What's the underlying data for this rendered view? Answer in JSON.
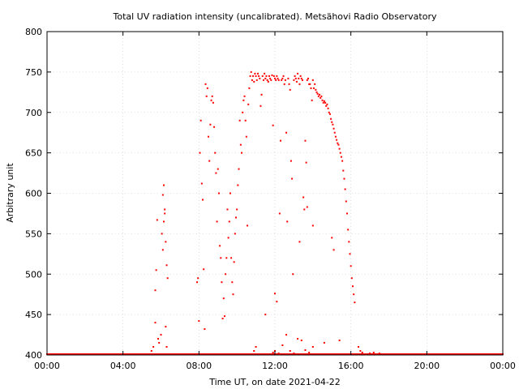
{
  "chart_data": {
    "type": "scatter",
    "title": "Total UV radiation intensity (uncalibrated). Metsähovi Radio Observatory",
    "xlabel": "Time UT, on date 2021-04-22",
    "ylabel": "Arbitrary unit",
    "x_unit": "hours UT",
    "xlim": [
      0,
      24
    ],
    "ylim": [
      400,
      800
    ],
    "grid": true,
    "marker_color": "#ff0000",
    "x_ticks": [
      {
        "value": 0,
        "label": "00:00"
      },
      {
        "value": 4,
        "label": "04:00"
      },
      {
        "value": 8,
        "label": "08:00"
      },
      {
        "value": 12,
        "label": "12:00"
      },
      {
        "value": 16,
        "label": "16:00"
      },
      {
        "value": 20,
        "label": "20:00"
      },
      {
        "value": 24,
        "label": "00:00"
      }
    ],
    "y_ticks": [
      400,
      450,
      500,
      550,
      600,
      650,
      700,
      750,
      800
    ],
    "points": [
      [
        5.5,
        405
      ],
      [
        5.6,
        410
      ],
      [
        5.7,
        440
      ],
      [
        5.75,
        505
      ],
      [
        5.8,
        567
      ],
      [
        5.7,
        480
      ],
      [
        5.85,
        420
      ],
      [
        5.9,
        415
      ],
      [
        6.0,
        425
      ],
      [
        6.05,
        550
      ],
      [
        6.1,
        598
      ],
      [
        6.15,
        610
      ],
      [
        6.2,
        580
      ],
      [
        6.25,
        540
      ],
      [
        6.3,
        511
      ],
      [
        6.35,
        495
      ],
      [
        6.1,
        530
      ],
      [
        6.15,
        565
      ],
      [
        6.2,
        575
      ],
      [
        6.25,
        435
      ],
      [
        6.3,
        410
      ],
      [
        7.9,
        490
      ],
      [
        7.95,
        495
      ],
      [
        8.0,
        442
      ],
      [
        8.05,
        650
      ],
      [
        8.1,
        690
      ],
      [
        8.15,
        612
      ],
      [
        8.2,
        592
      ],
      [
        8.25,
        506
      ],
      [
        8.3,
        432
      ],
      [
        8.35,
        735
      ],
      [
        8.4,
        720
      ],
      [
        8.45,
        730
      ],
      [
        8.5,
        670
      ],
      [
        8.55,
        640
      ],
      [
        8.6,
        685
      ],
      [
        8.65,
        715
      ],
      [
        8.7,
        720
      ],
      [
        8.75,
        712
      ],
      [
        8.8,
        682
      ],
      [
        8.85,
        650
      ],
      [
        8.9,
        625
      ],
      [
        8.95,
        565
      ],
      [
        9.0,
        630
      ],
      [
        9.05,
        600
      ],
      [
        9.1,
        535
      ],
      [
        9.15,
        520
      ],
      [
        9.2,
        490
      ],
      [
        9.25,
        445
      ],
      [
        9.3,
        470
      ],
      [
        9.35,
        448
      ],
      [
        9.4,
        500
      ],
      [
        9.45,
        520
      ],
      [
        9.5,
        580
      ],
      [
        9.55,
        545
      ],
      [
        9.6,
        565
      ],
      [
        9.65,
        600
      ],
      [
        9.7,
        520
      ],
      [
        9.75,
        490
      ],
      [
        9.8,
        475
      ],
      [
        9.85,
        515
      ],
      [
        9.9,
        550
      ],
      [
        9.95,
        570
      ],
      [
        10.0,
        580
      ],
      [
        10.05,
        610
      ],
      [
        10.1,
        630
      ],
      [
        10.15,
        690
      ],
      [
        10.2,
        660
      ],
      [
        10.25,
        650
      ],
      [
        10.3,
        700
      ],
      [
        10.35,
        715
      ],
      [
        10.4,
        720
      ],
      [
        10.45,
        690
      ],
      [
        10.5,
        670
      ],
      [
        10.55,
        560
      ],
      [
        10.6,
        710
      ],
      [
        10.65,
        730
      ],
      [
        10.7,
        745
      ],
      [
        10.75,
        750
      ],
      [
        10.8,
        740
      ],
      [
        10.85,
        745
      ],
      [
        10.9,
        738
      ],
      [
        10.95,
        748
      ],
      [
        11.0,
        745
      ],
      [
        11.05,
        740
      ],
      [
        11.1,
        748
      ],
      [
        11.15,
        745
      ],
      [
        11.2,
        742
      ],
      [
        11.25,
        708
      ],
      [
        11.3,
        722
      ],
      [
        11.35,
        745
      ],
      [
        11.4,
        740
      ],
      [
        11.45,
        748
      ],
      [
        11.5,
        742
      ],
      [
        11.55,
        745
      ],
      [
        11.6,
        740
      ],
      [
        11.65,
        738
      ],
      [
        11.7,
        745
      ],
      [
        11.75,
        742
      ],
      [
        11.8,
        740
      ],
      [
        11.85,
        746
      ],
      [
        11.9,
        684
      ],
      [
        11.95,
        745
      ],
      [
        12.0,
        742
      ],
      [
        12.05,
        740
      ],
      [
        12.1,
        745
      ],
      [
        12.15,
        742
      ],
      [
        12.2,
        740
      ],
      [
        12.25,
        575
      ],
      [
        12.3,
        665
      ],
      [
        12.35,
        740
      ],
      [
        12.4,
        742
      ],
      [
        12.45,
        745
      ],
      [
        12.5,
        735
      ],
      [
        12.55,
        740
      ],
      [
        12.6,
        675
      ],
      [
        12.65,
        565
      ],
      [
        12.7,
        742
      ],
      [
        12.75,
        735
      ],
      [
        12.8,
        728
      ],
      [
        12.85,
        640
      ],
      [
        12.9,
        618
      ],
      [
        12.95,
        500
      ],
      [
        13.0,
        740
      ],
      [
        13.05,
        745
      ],
      [
        13.1,
        742
      ],
      [
        13.15,
        738
      ],
      [
        13.2,
        748
      ],
      [
        13.25,
        742
      ],
      [
        13.3,
        735
      ],
      [
        13.35,
        745
      ],
      [
        13.4,
        742
      ],
      [
        13.45,
        740
      ],
      [
        13.5,
        595
      ],
      [
        13.55,
        580
      ],
      [
        13.6,
        665
      ],
      [
        13.65,
        638
      ],
      [
        13.7,
        740
      ],
      [
        13.75,
        742
      ],
      [
        13.8,
        735
      ],
      [
        13.85,
        735
      ],
      [
        13.9,
        730
      ],
      [
        13.95,
        715
      ],
      [
        14.0,
        740
      ],
      [
        14.05,
        730
      ],
      [
        14.1,
        735
      ],
      [
        14.15,
        728
      ],
      [
        14.2,
        725
      ],
      [
        14.25,
        723
      ],
      [
        14.3,
        720
      ],
      [
        14.35,
        722
      ],
      [
        14.4,
        718
      ],
      [
        14.45,
        720
      ],
      [
        14.5,
        715
      ],
      [
        14.55,
        712
      ],
      [
        14.6,
        714
      ],
      [
        14.65,
        712
      ],
      [
        14.7,
        708
      ],
      [
        14.75,
        710
      ],
      [
        14.8,
        705
      ],
      [
        14.85,
        700
      ],
      [
        14.9,
        698
      ],
      [
        14.95,
        692
      ],
      [
        15.0,
        688
      ],
      [
        15.05,
        685
      ],
      [
        15.1,
        680
      ],
      [
        15.15,
        675
      ],
      [
        15.2,
        670
      ],
      [
        15.25,
        666
      ],
      [
        15.3,
        662
      ],
      [
        15.35,
        660
      ],
      [
        15.4,
        655
      ],
      [
        15.45,
        650
      ],
      [
        15.5,
        645
      ],
      [
        15.55,
        640
      ],
      [
        15.6,
        628
      ],
      [
        15.65,
        618
      ],
      [
        15.7,
        605
      ],
      [
        15.75,
        590
      ],
      [
        15.8,
        575
      ],
      [
        15.85,
        555
      ],
      [
        15.9,
        540
      ],
      [
        15.95,
        525
      ],
      [
        16.0,
        510
      ],
      [
        16.05,
        495
      ],
      [
        16.1,
        485
      ],
      [
        16.15,
        475
      ],
      [
        16.2,
        465
      ],
      [
        15.0,
        545
      ],
      [
        15.1,
        530
      ],
      [
        14.0,
        560
      ],
      [
        13.7,
        583
      ],
      [
        13.3,
        540
      ],
      [
        12.0,
        476
      ],
      [
        12.1,
        466
      ],
      [
        11.5,
        450
      ],
      [
        10.9,
        405
      ],
      [
        11.0,
        410
      ],
      [
        16.4,
        410
      ],
      [
        16.5,
        405
      ],
      [
        16.6,
        403
      ],
      [
        17.0,
        402
      ],
      [
        17.2,
        403
      ],
      [
        17.5,
        402
      ],
      [
        17.8,
        401
      ],
      [
        11.9,
        403
      ],
      [
        12.0,
        405
      ],
      [
        12.2,
        402
      ],
      [
        12.4,
        412
      ],
      [
        12.6,
        425
      ],
      [
        12.8,
        405
      ],
      [
        13.0,
        402
      ],
      [
        13.2,
        420
      ],
      [
        13.4,
        418
      ],
      [
        13.6,
        406
      ],
      [
        13.8,
        403
      ],
      [
        14.0,
        410
      ],
      [
        14.6,
        415
      ],
      [
        15.4,
        418
      ]
    ]
  }
}
